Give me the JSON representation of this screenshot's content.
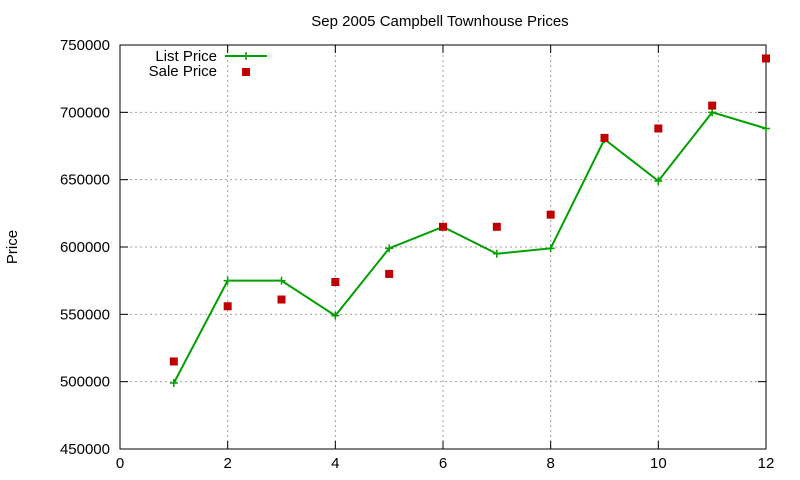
{
  "chart_data": {
    "type": "scatter",
    "title": "Sep 2005 Campbell Townhouse Prices",
    "xlabel": "",
    "ylabel": "Price",
    "xlim": [
      0,
      12
    ],
    "ylim": [
      450000,
      750000
    ],
    "xticks": [
      0,
      2,
      4,
      6,
      8,
      10,
      12
    ],
    "xtick_labels": [
      "0",
      "2",
      "4",
      "6",
      "8",
      "10",
      "12"
    ],
    "yticks": [
      450000,
      500000,
      550000,
      600000,
      650000,
      700000,
      750000
    ],
    "ytick_labels": [
      "450000",
      "500000",
      "550000",
      "600000",
      "650000",
      "700000",
      "750000"
    ],
    "grid": true,
    "legend_position": "top-left",
    "series": [
      {
        "name": "List Price",
        "style": "line-with-plus-markers",
        "color": "#00a000",
        "x": [
          1,
          2,
          3,
          4,
          5,
          6,
          7,
          8,
          9,
          10,
          11,
          12
        ],
        "values": [
          499000,
          575000,
          575000,
          549000,
          599000,
          615000,
          595000,
          599000,
          680000,
          649000,
          700000,
          688000
        ]
      },
      {
        "name": "Sale Price",
        "style": "square-points",
        "color": "#c00000",
        "x": [
          1,
          2,
          3,
          4,
          5,
          6,
          7,
          8,
          9,
          10,
          11,
          12
        ],
        "values": [
          515000,
          556000,
          561000,
          574000,
          580000,
          615000,
          615000,
          624000,
          681000,
          688000,
          705000,
          740000
        ]
      }
    ]
  }
}
